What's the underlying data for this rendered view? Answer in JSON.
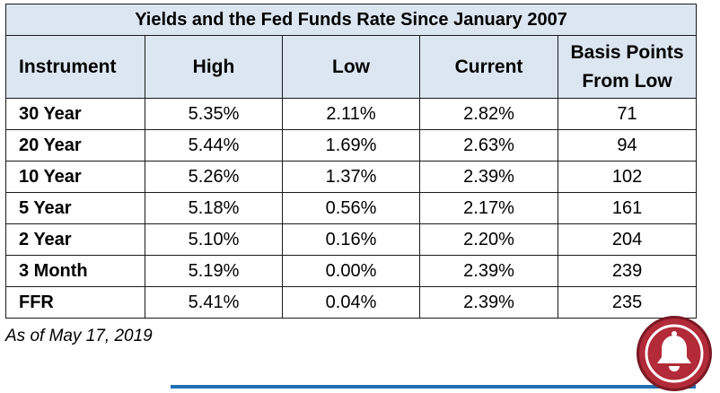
{
  "table": {
    "title": "Yields and the Fed Funds Rate Since January 2007",
    "headers": [
      "Instrument",
      "High",
      "Low",
      "Current",
      "Basis Points",
      "From Low"
    ],
    "rows": [
      [
        "30 Year",
        "5.35%",
        "2.11%",
        "2.82%",
        "71"
      ],
      [
        "20 Year",
        "5.44%",
        "1.69%",
        "2.63%",
        "94"
      ],
      [
        "10 Year",
        "5.26%",
        "1.37%",
        "2.39%",
        "102"
      ],
      [
        "5 Year",
        "5.18%",
        "0.56%",
        "2.17%",
        "161"
      ],
      [
        "2 Year",
        "5.10%",
        "0.16%",
        "2.20%",
        "204"
      ],
      [
        "3 Month",
        "5.19%",
        "0.00%",
        "2.39%",
        "239"
      ],
      [
        "FFR",
        "5.41%",
        "0.04%",
        "2.39%",
        "235"
      ]
    ]
  },
  "note": "As of May 17, 2019",
  "notification": {
    "icon": "bell-icon",
    "color": "#b32a39"
  },
  "accent_line_color": "#1f6fb4"
}
